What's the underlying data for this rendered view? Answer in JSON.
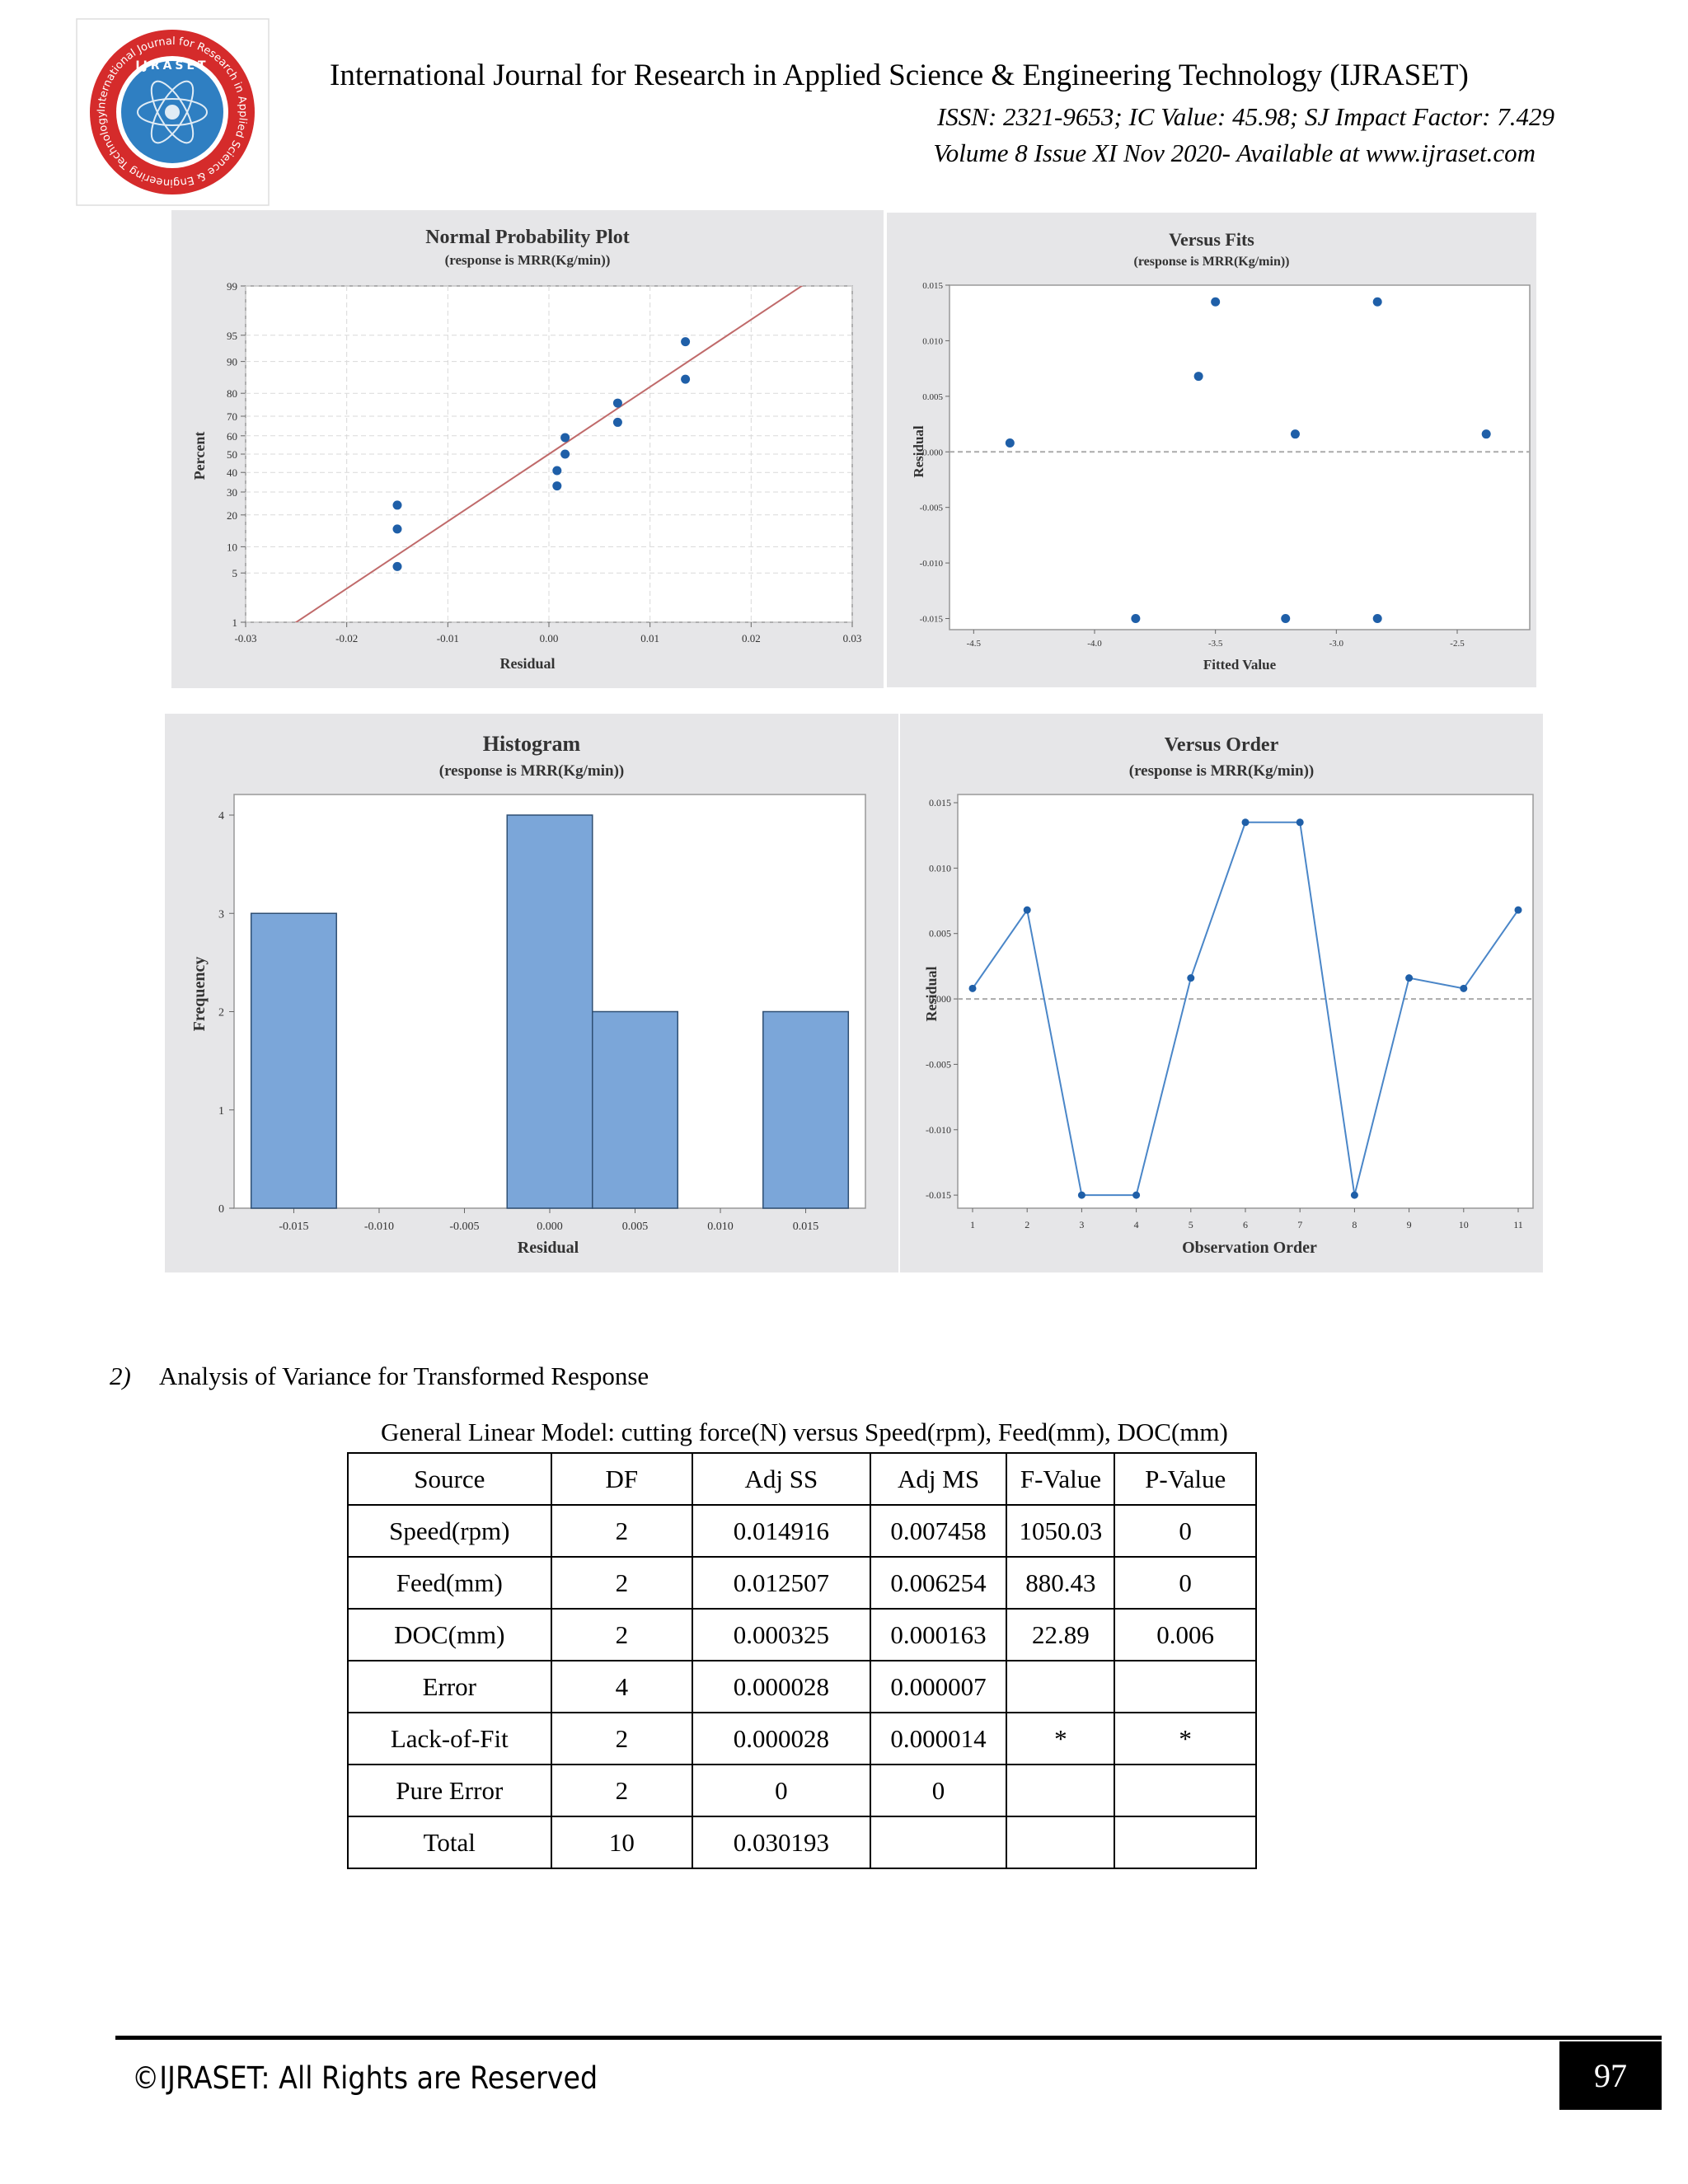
{
  "header": {
    "journal": "International Journal for Research in Applied Science & Engineering Technology (IJRASET)",
    "issn_line": "ISSN: 2321-9653; IC Value: 45.98; SJ Impact Factor: 7.429",
    "volume_line": "Volume 8 Issue XI Nov 2020- Available at www.ijraset.com",
    "logo_arc_text": "International Journal for Research in Applied Science & Engineering Technology",
    "logo_center_text": "IJRASET"
  },
  "chart_data": [
    {
      "type": "scatter",
      "title": "Normal Probability Plot",
      "subtitle": "(response is MRR(Kg/min))",
      "xlabel": "Residual",
      "ylabel": "Percent",
      "xlim": [
        -0.03,
        0.03
      ],
      "x_ticks": [
        "-0.03",
        "-0.02",
        "-0.01",
        "0.00",
        "0.01",
        "0.02",
        "0.03"
      ],
      "y_ticks": [
        "1",
        "5",
        "10",
        "20",
        "30",
        "40",
        "50",
        "60",
        "70",
        "80",
        "90",
        "95",
        "99"
      ],
      "y_scale": "normal-probability",
      "grid": true,
      "points": [
        {
          "x": -0.015,
          "y": 6
        },
        {
          "x": -0.015,
          "y": 15
        },
        {
          "x": -0.015,
          "y": 24
        },
        {
          "x": 0.0008,
          "y": 33
        },
        {
          "x": 0.0008,
          "y": 41
        },
        {
          "x": 0.0016,
          "y": 50
        },
        {
          "x": 0.0016,
          "y": 59
        },
        {
          "x": 0.0068,
          "y": 67
        },
        {
          "x": 0.0068,
          "y": 76
        },
        {
          "x": 0.0135,
          "y": 85
        },
        {
          "x": 0.0135,
          "y": 94
        }
      ],
      "fit_line": [
        {
          "x": -0.025,
          "y": 1
        },
        {
          "x": 0.025,
          "y": 99
        }
      ]
    },
    {
      "type": "scatter",
      "title": "Versus Fits",
      "subtitle": "(response is MRR(Kg/min))",
      "xlabel": "Fitted Value",
      "ylabel": "Residual",
      "xlim": [
        -4.6,
        -2.2
      ],
      "ylim": [
        -0.016,
        0.015
      ],
      "x_ticks": [
        "-4.5",
        "-4.0",
        "-3.5",
        "-3.0",
        "-2.5"
      ],
      "y_ticks": [
        "-0.015",
        "-0.010",
        "-0.005",
        "0.000",
        "0.005",
        "0.010",
        "0.015"
      ],
      "reference_line": 0,
      "points": [
        {
          "x": -4.35,
          "y": 0.0008
        },
        {
          "x": -3.83,
          "y": -0.015
        },
        {
          "x": -3.57,
          "y": 0.0068
        },
        {
          "x": -3.5,
          "y": 0.0135
        },
        {
          "x": -3.21,
          "y": -0.015
        },
        {
          "x": -3.17,
          "y": 0.0016
        },
        {
          "x": -2.83,
          "y": 0.0135
        },
        {
          "x": -2.83,
          "y": -0.015
        },
        {
          "x": -2.38,
          "y": 0.0016
        }
      ]
    },
    {
      "type": "bar",
      "title": "Histogram",
      "subtitle": "(response is MRR(Kg/min))",
      "xlabel": "Residual",
      "ylabel": "Frequency",
      "x_ticks": [
        "-0.015",
        "-0.010",
        "-0.005",
        "0.000",
        "0.005",
        "0.010",
        "0.015"
      ],
      "y_ticks": [
        "0",
        "1",
        "2",
        "3",
        "4"
      ],
      "ylim": [
        0,
        4
      ],
      "bin_width": 0.005,
      "bins": [
        {
          "center": -0.015,
          "count": 3
        },
        {
          "center": -0.01,
          "count": 0
        },
        {
          "center": -0.005,
          "count": 0
        },
        {
          "center": 0.0,
          "count": 4
        },
        {
          "center": 0.005,
          "count": 2
        },
        {
          "center": 0.01,
          "count": 0
        },
        {
          "center": 0.015,
          "count": 2
        }
      ],
      "color": "#7ba6d9"
    },
    {
      "type": "line",
      "title": "Versus Order",
      "subtitle": "(response is MRR(Kg/min))",
      "xlabel": "Observation Order",
      "ylabel": "Residual",
      "ylim": [
        -0.016,
        0.015
      ],
      "x_ticks": [
        "1",
        "2",
        "3",
        "4",
        "5",
        "6",
        "7",
        "8",
        "9",
        "10",
        "11"
      ],
      "y_ticks": [
        "-0.015",
        "-0.010",
        "-0.005",
        "0.000",
        "0.005",
        "0.010",
        "0.015"
      ],
      "reference_line": 0,
      "x": [
        1,
        2,
        3,
        4,
        5,
        6,
        7,
        8,
        9,
        10,
        11
      ],
      "y": [
        0.0008,
        0.0068,
        -0.015,
        -0.015,
        0.0016,
        0.0135,
        0.0135,
        -0.015,
        0.0016,
        0.0008,
        0.0068
      ]
    }
  ],
  "section": {
    "number": "2)",
    "heading": "Analysis of Variance for Transformed Response"
  },
  "table": {
    "caption": "General Linear Model: cutting force(N) versus Speed(rpm), Feed(mm), DOC(mm)",
    "headers": [
      "Source",
      "DF",
      "Adj SS",
      "Adj MS",
      "F-Value",
      "P-Value"
    ],
    "rows": [
      [
        "Speed(rpm)",
        "2",
        "0.014916",
        "0.007458",
        "1050.03",
        "0"
      ],
      [
        "Feed(mm)",
        "2",
        "0.012507",
        "0.006254",
        "880.43",
        "0"
      ],
      [
        "DOC(mm)",
        "2",
        "0.000325",
        "0.000163",
        "22.89",
        "0.006"
      ],
      [
        "Error",
        "4",
        "0.000028",
        "0.000007",
        "",
        ""
      ],
      [
        "Lack-of-Fit",
        "2",
        "0.000028",
        "0.000014",
        "*",
        "*"
      ],
      [
        "Pure Error",
        "2",
        "0",
        "0",
        "",
        ""
      ],
      [
        "Total",
        "10",
        "0.030193",
        "",
        "",
        ""
      ]
    ]
  },
  "footer": {
    "rights": "©IJRASET: All Rights are Reserved",
    "page_number": "97"
  }
}
